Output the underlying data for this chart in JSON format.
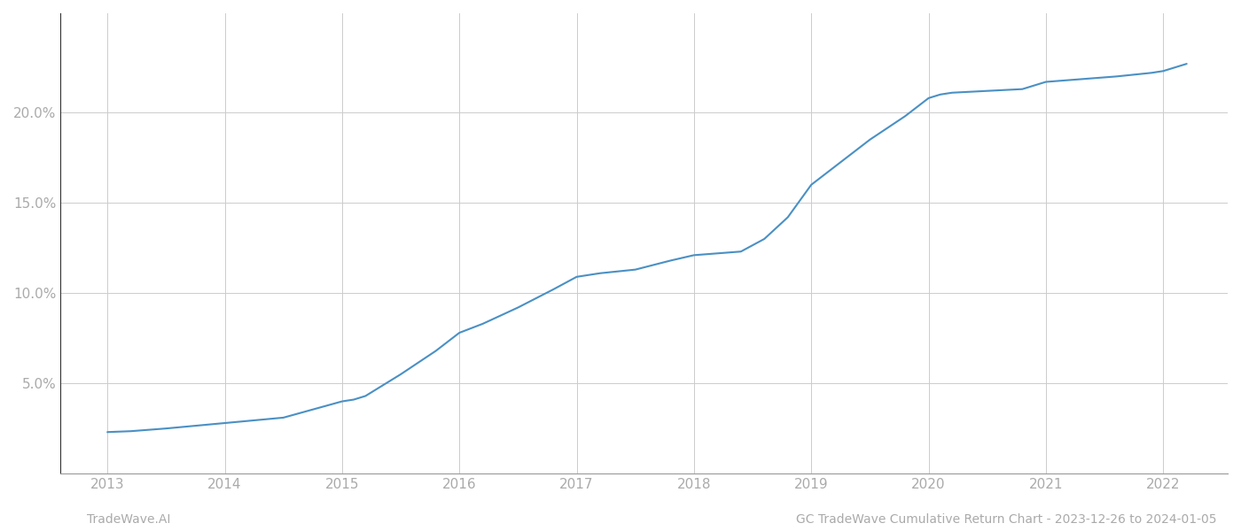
{
  "x_years": [
    2013.0,
    2013.2,
    2013.5,
    2014.0,
    2014.5,
    2015.0,
    2015.05,
    2015.1,
    2015.2,
    2015.5,
    2015.8,
    2016.0,
    2016.2,
    2016.5,
    2016.8,
    2017.0,
    2017.1,
    2017.2,
    2017.5,
    2017.8,
    2018.0,
    2018.1,
    2018.2,
    2018.4,
    2018.6,
    2018.8,
    2019.0,
    2019.2,
    2019.5,
    2019.8,
    2020.0,
    2020.1,
    2020.2,
    2020.5,
    2020.8,
    2021.0,
    2021.3,
    2021.6,
    2021.9,
    2022.0,
    2022.2
  ],
  "y_values": [
    2.3,
    2.35,
    2.5,
    2.8,
    3.1,
    4.0,
    4.05,
    4.1,
    4.3,
    5.5,
    6.8,
    7.8,
    8.3,
    9.2,
    10.2,
    10.9,
    11.0,
    11.1,
    11.3,
    11.8,
    12.1,
    12.15,
    12.2,
    12.3,
    13.0,
    14.2,
    16.0,
    17.0,
    18.5,
    19.8,
    20.8,
    21.0,
    21.1,
    21.2,
    21.3,
    21.7,
    21.85,
    22.0,
    22.2,
    22.3,
    22.7
  ],
  "line_color": "#4a90c4",
  "line_width": 1.5,
  "background_color": "#ffffff",
  "grid_color": "#cccccc",
  "ytick_labels": [
    "5.0%",
    "10.0%",
    "15.0%",
    "20.0%"
  ],
  "ytick_values": [
    5.0,
    10.0,
    15.0,
    20.0
  ],
  "xtick_values": [
    2013,
    2014,
    2015,
    2016,
    2017,
    2018,
    2019,
    2020,
    2021,
    2022
  ],
  "xlim": [
    2012.6,
    2022.55
  ],
  "ylim": [
    0.0,
    25.5
  ],
  "left_spine_color": "#333333",
  "bottom_spine_color": "#999999",
  "footer_left": "TradeWave.AI",
  "footer_right": "GC TradeWave Cumulative Return Chart - 2023-12-26 to 2024-01-05",
  "footer_fontsize": 10,
  "footer_color": "#aaaaaa",
  "tick_color": "#aaaaaa",
  "tick_fontsize": 11
}
